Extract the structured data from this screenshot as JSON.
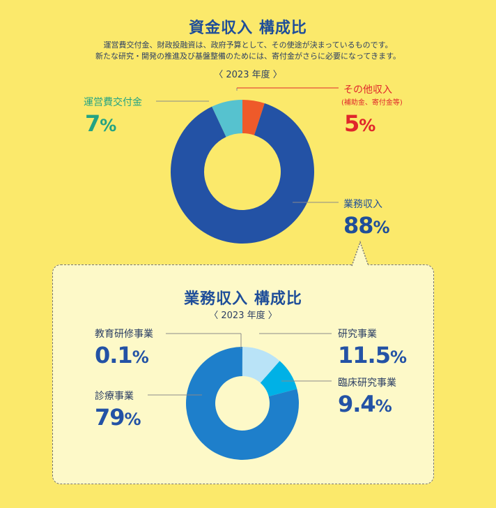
{
  "colors": {
    "background": "#fbe96b",
    "title": "#1f4e99",
    "main_blue": "#2352a5",
    "teal": "#56c2cf",
    "orange": "#ee5a2a",
    "green_text": "#23a383",
    "red_text": "#e0262b",
    "clinical_blue": "#1e7fcb",
    "research_light": "#b9e3f7",
    "clinical_cyan": "#00b1e6"
  },
  "top": {
    "title": "資金収入 構成比",
    "desc_line1": "運営費交付金、財政投融資は、政府予算として、その使途が決まっているものです。",
    "desc_line2": "新たな研究・開発の推進及び基盤整備のためには、寄付金がさらに必要になってきます。",
    "year": "〈 2023 年度 〉",
    "grant_label": "運営費交付金",
    "grant_value": "7",
    "other_label": "その他収入",
    "other_sub": "(補助金、寄付金等)",
    "other_value": "5",
    "business_label": "業務収入",
    "business_value": "88",
    "percent_sign": "%"
  },
  "bottom": {
    "title": "業務収入 構成比",
    "year": "〈 2023 年度 〉",
    "education_label": "教育研修事業",
    "education_value": "0.1",
    "research_label": "研究事業",
    "research_value": "11.5",
    "clinical_research_label": "臨床研究事業",
    "clinical_research_value": "9.4",
    "medical_label": "診療事業",
    "medical_value": "79",
    "percent_sign": "%"
  },
  "chart_data": [
    {
      "type": "pie",
      "title": "資金収入 構成比",
      "subtitle": "〈 2023 年度 〉",
      "categories": [
        "業務収入",
        "運営費交付金",
        "その他収入"
      ],
      "values": [
        88,
        7,
        5
      ],
      "colors": [
        "#2352a5",
        "#56c2cf",
        "#ee5a2a"
      ]
    },
    {
      "type": "pie",
      "title": "業務収入 構成比",
      "subtitle": "〈 2023 年度 〉",
      "categories": [
        "研究事業",
        "臨床研究事業",
        "診療事業",
        "教育研修事業"
      ],
      "values": [
        11.5,
        9.4,
        79,
        0.1
      ],
      "colors": [
        "#b9e3f7",
        "#00b1e6",
        "#1e7fcb",
        "#1e7fcb"
      ]
    }
  ]
}
